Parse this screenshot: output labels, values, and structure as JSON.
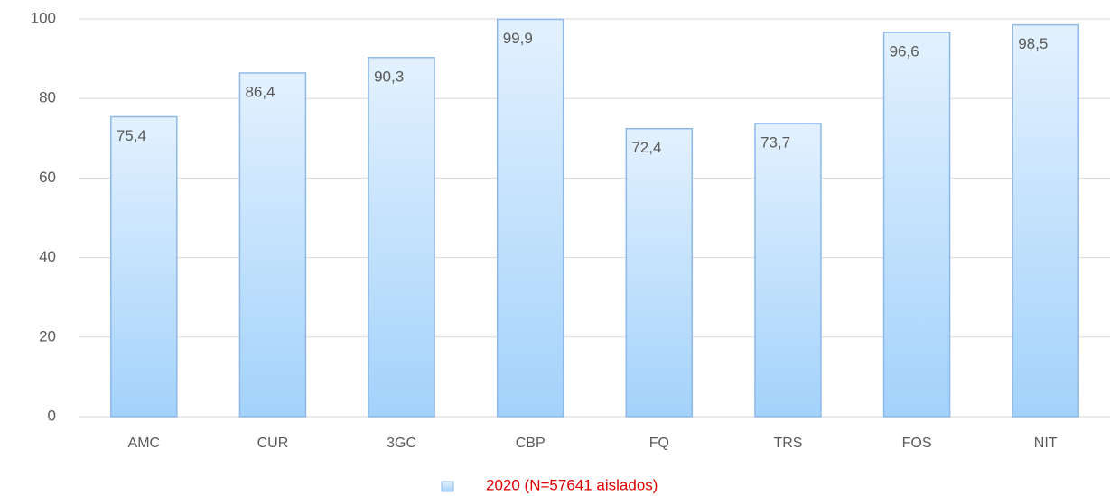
{
  "chart_data": {
    "type": "bar",
    "categories": [
      "AMC",
      "CUR",
      "3GC",
      "CBP",
      "FQ",
      "TRS",
      "FOS",
      "NIT"
    ],
    "series": [
      {
        "name": "2020 (N=57641 aislados)",
        "color": "#a3d2fb",
        "values": [
          75.4,
          86.4,
          90.3,
          99.9,
          72.4,
          73.7,
          96.6,
          98.5
        ],
        "value_labels": [
          "75,4",
          "86,4",
          "90,3",
          "99,9",
          "72,4",
          "73,7",
          "96,6",
          "98,5"
        ]
      }
    ],
    "ylim": [
      0,
      100
    ],
    "yticks": [
      0,
      20,
      40,
      60,
      80,
      100
    ],
    "grid": true,
    "legend": "bottom"
  }
}
